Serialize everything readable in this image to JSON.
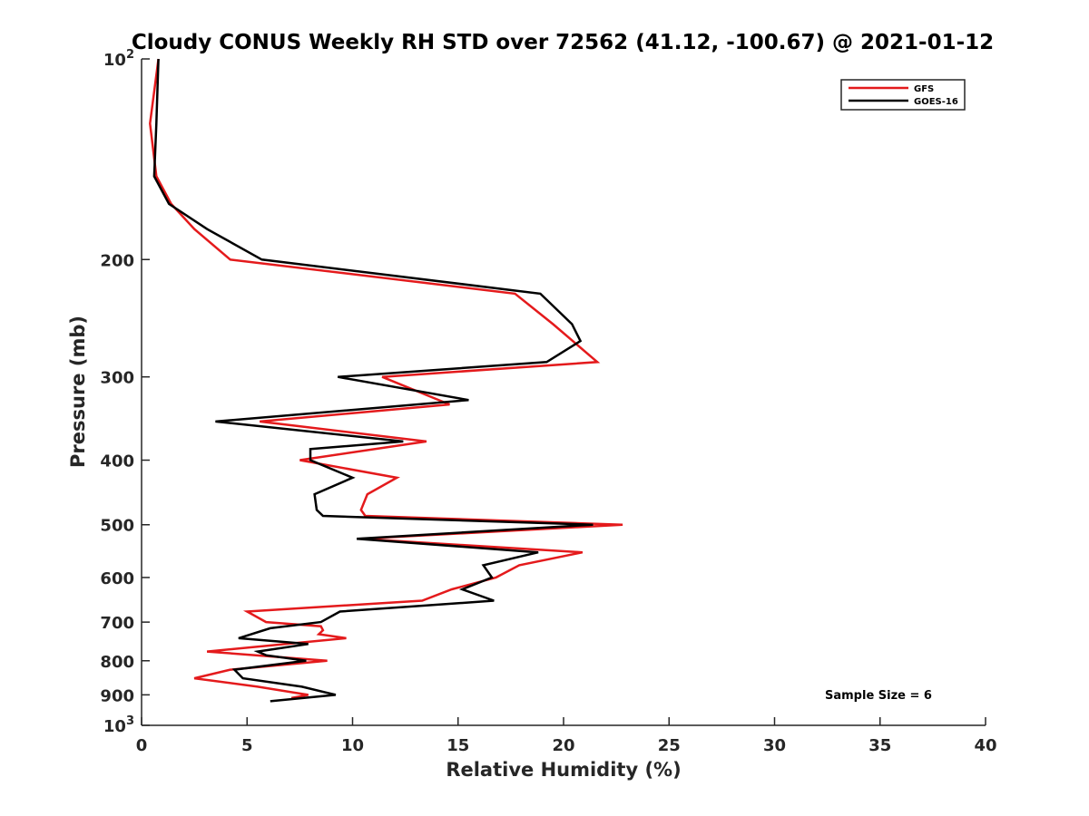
{
  "chart_data": {
    "type": "line",
    "title": "Cloudy CONUS Weekly RH STD over 72562 (41.12, -100.67) @ 2021-01-12",
    "xlabel": "Relative Humidity (%)",
    "ylabel": "Pressure (mb)",
    "xlim": [
      0,
      40
    ],
    "ylim": [
      100,
      1000
    ],
    "yscale": "log",
    "y_reversed": true,
    "x_ticks": [
      "0",
      "5",
      "10",
      "15",
      "20",
      "25",
      "30",
      "35",
      "40"
    ],
    "y_ticks": [
      {
        "value": 100,
        "base": "10",
        "exp": "2"
      },
      {
        "value": 200,
        "label": "200"
      },
      {
        "value": 300,
        "label": "300"
      },
      {
        "value": 400,
        "label": "400"
      },
      {
        "value": 500,
        "label": "500"
      },
      {
        "value": 600,
        "label": "600"
      },
      {
        "value": 700,
        "label": "700"
      },
      {
        "value": 800,
        "label": "800"
      },
      {
        "value": 900,
        "label": "900"
      },
      {
        "value": 1000,
        "base": "10",
        "exp": "3"
      }
    ],
    "legend_position": "top-right",
    "grid": false,
    "annotation": "Sample Size = 6",
    "series": [
      {
        "name": "GFS",
        "color": "#e41a1c",
        "points": [
          {
            "p": 100,
            "rh": 0.8
          },
          {
            "p": 125,
            "rh": 0.4
          },
          {
            "p": 150,
            "rh": 0.7
          },
          {
            "p": 165,
            "rh": 1.4
          },
          {
            "p": 180,
            "rh": 2.5
          },
          {
            "p": 200,
            "rh": 4.2
          },
          {
            "p": 225,
            "rh": 17.7
          },
          {
            "p": 250,
            "rh": 19.5
          },
          {
            "p": 285,
            "rh": 21.6
          },
          {
            "p": 300,
            "rh": 11.4
          },
          {
            "p": 330,
            "rh": 14.6
          },
          {
            "p": 350,
            "rh": 5.6
          },
          {
            "p": 375,
            "rh": 13.5
          },
          {
            "p": 400,
            "rh": 7.5
          },
          {
            "p": 425,
            "rh": 12.1
          },
          {
            "p": 450,
            "rh": 10.7
          },
          {
            "p": 475,
            "rh": 10.4
          },
          {
            "p": 485,
            "rh": 10.6
          },
          {
            "p": 500,
            "rh": 22.8
          },
          {
            "p": 525,
            "rh": 10.4
          },
          {
            "p": 550,
            "rh": 20.9
          },
          {
            "p": 575,
            "rh": 17.9
          },
          {
            "p": 600,
            "rh": 16.8
          },
          {
            "p": 625,
            "rh": 14.7
          },
          {
            "p": 650,
            "rh": 13.3
          },
          {
            "p": 675,
            "rh": 5.0
          },
          {
            "p": 700,
            "rh": 5.9
          },
          {
            "p": 710,
            "rh": 8.5
          },
          {
            "p": 720,
            "rh": 8.6
          },
          {
            "p": 730,
            "rh": 8.4
          },
          {
            "p": 740,
            "rh": 9.7
          },
          {
            "p": 775,
            "rh": 3.1
          },
          {
            "p": 800,
            "rh": 8.8
          },
          {
            "p": 825,
            "rh": 4.2
          },
          {
            "p": 850,
            "rh": 2.5
          },
          {
            "p": 875,
            "rh": 5.5
          },
          {
            "p": 900,
            "rh": 7.9
          },
          {
            "p": 910,
            "rh": 7.1
          }
        ]
      },
      {
        "name": "GOES-16",
        "color": "#000000",
        "points": [
          {
            "p": 100,
            "rh": 0.8
          },
          {
            "p": 125,
            "rh": 0.7
          },
          {
            "p": 150,
            "rh": 0.6
          },
          {
            "p": 165,
            "rh": 1.3
          },
          {
            "p": 180,
            "rh": 3.1
          },
          {
            "p": 200,
            "rh": 5.7
          },
          {
            "p": 225,
            "rh": 18.9
          },
          {
            "p": 250,
            "rh": 20.4
          },
          {
            "p": 265,
            "rh": 20.8
          },
          {
            "p": 285,
            "rh": 19.2
          },
          {
            "p": 300,
            "rh": 9.3
          },
          {
            "p": 325,
            "rh": 15.5
          },
          {
            "p": 350,
            "rh": 3.5
          },
          {
            "p": 375,
            "rh": 12.4
          },
          {
            "p": 385,
            "rh": 8.0
          },
          {
            "p": 400,
            "rh": 8.0
          },
          {
            "p": 425,
            "rh": 10.0
          },
          {
            "p": 450,
            "rh": 8.2
          },
          {
            "p": 475,
            "rh": 8.3
          },
          {
            "p": 485,
            "rh": 8.6
          },
          {
            "p": 500,
            "rh": 21.4
          },
          {
            "p": 525,
            "rh": 10.2
          },
          {
            "p": 550,
            "rh": 18.8
          },
          {
            "p": 575,
            "rh": 16.2
          },
          {
            "p": 600,
            "rh": 16.6
          },
          {
            "p": 625,
            "rh": 15.2
          },
          {
            "p": 650,
            "rh": 16.7
          },
          {
            "p": 675,
            "rh": 9.4
          },
          {
            "p": 700,
            "rh": 8.5
          },
          {
            "p": 715,
            "rh": 6.1
          },
          {
            "p": 740,
            "rh": 4.6
          },
          {
            "p": 755,
            "rh": 7.9
          },
          {
            "p": 775,
            "rh": 5.5
          },
          {
            "p": 785,
            "rh": 5.9
          },
          {
            "p": 800,
            "rh": 7.8
          },
          {
            "p": 825,
            "rh": 4.4
          },
          {
            "p": 850,
            "rh": 4.8
          },
          {
            "p": 875,
            "rh": 7.6
          },
          {
            "p": 900,
            "rh": 9.2
          },
          {
            "p": 920,
            "rh": 6.1
          }
        ]
      }
    ]
  }
}
